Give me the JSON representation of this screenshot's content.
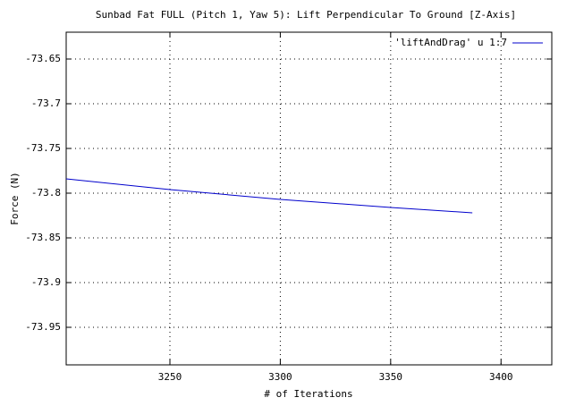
{
  "chart_data": {
    "type": "line",
    "title": "Sunbad Fat FULL (Pitch 1, Yaw 5): Lift Perpendicular To Ground [Z-Axis]",
    "x_label": "# of Iterations",
    "y_label": "Force (N)",
    "x": [
      3203,
      3250,
      3300,
      3350,
      3387
    ],
    "series": [
      {
        "name": "'liftAndDrag' u 1:7",
        "color": "#0000cc",
        "values": [
          -73.784,
          -73.796,
          -73.807,
          -73.816,
          -73.822
        ]
      }
    ],
    "xlim": [
      3203,
      3423
    ],
    "ylim": [
      -73.992,
      -73.62
    ],
    "xticks": [
      3250,
      3300,
      3350,
      3400
    ],
    "yticks": [
      -73.65,
      -73.7,
      -73.75,
      -73.8,
      -73.85,
      -73.9,
      -73.95
    ],
    "grid": true,
    "legend": "top-right"
  }
}
